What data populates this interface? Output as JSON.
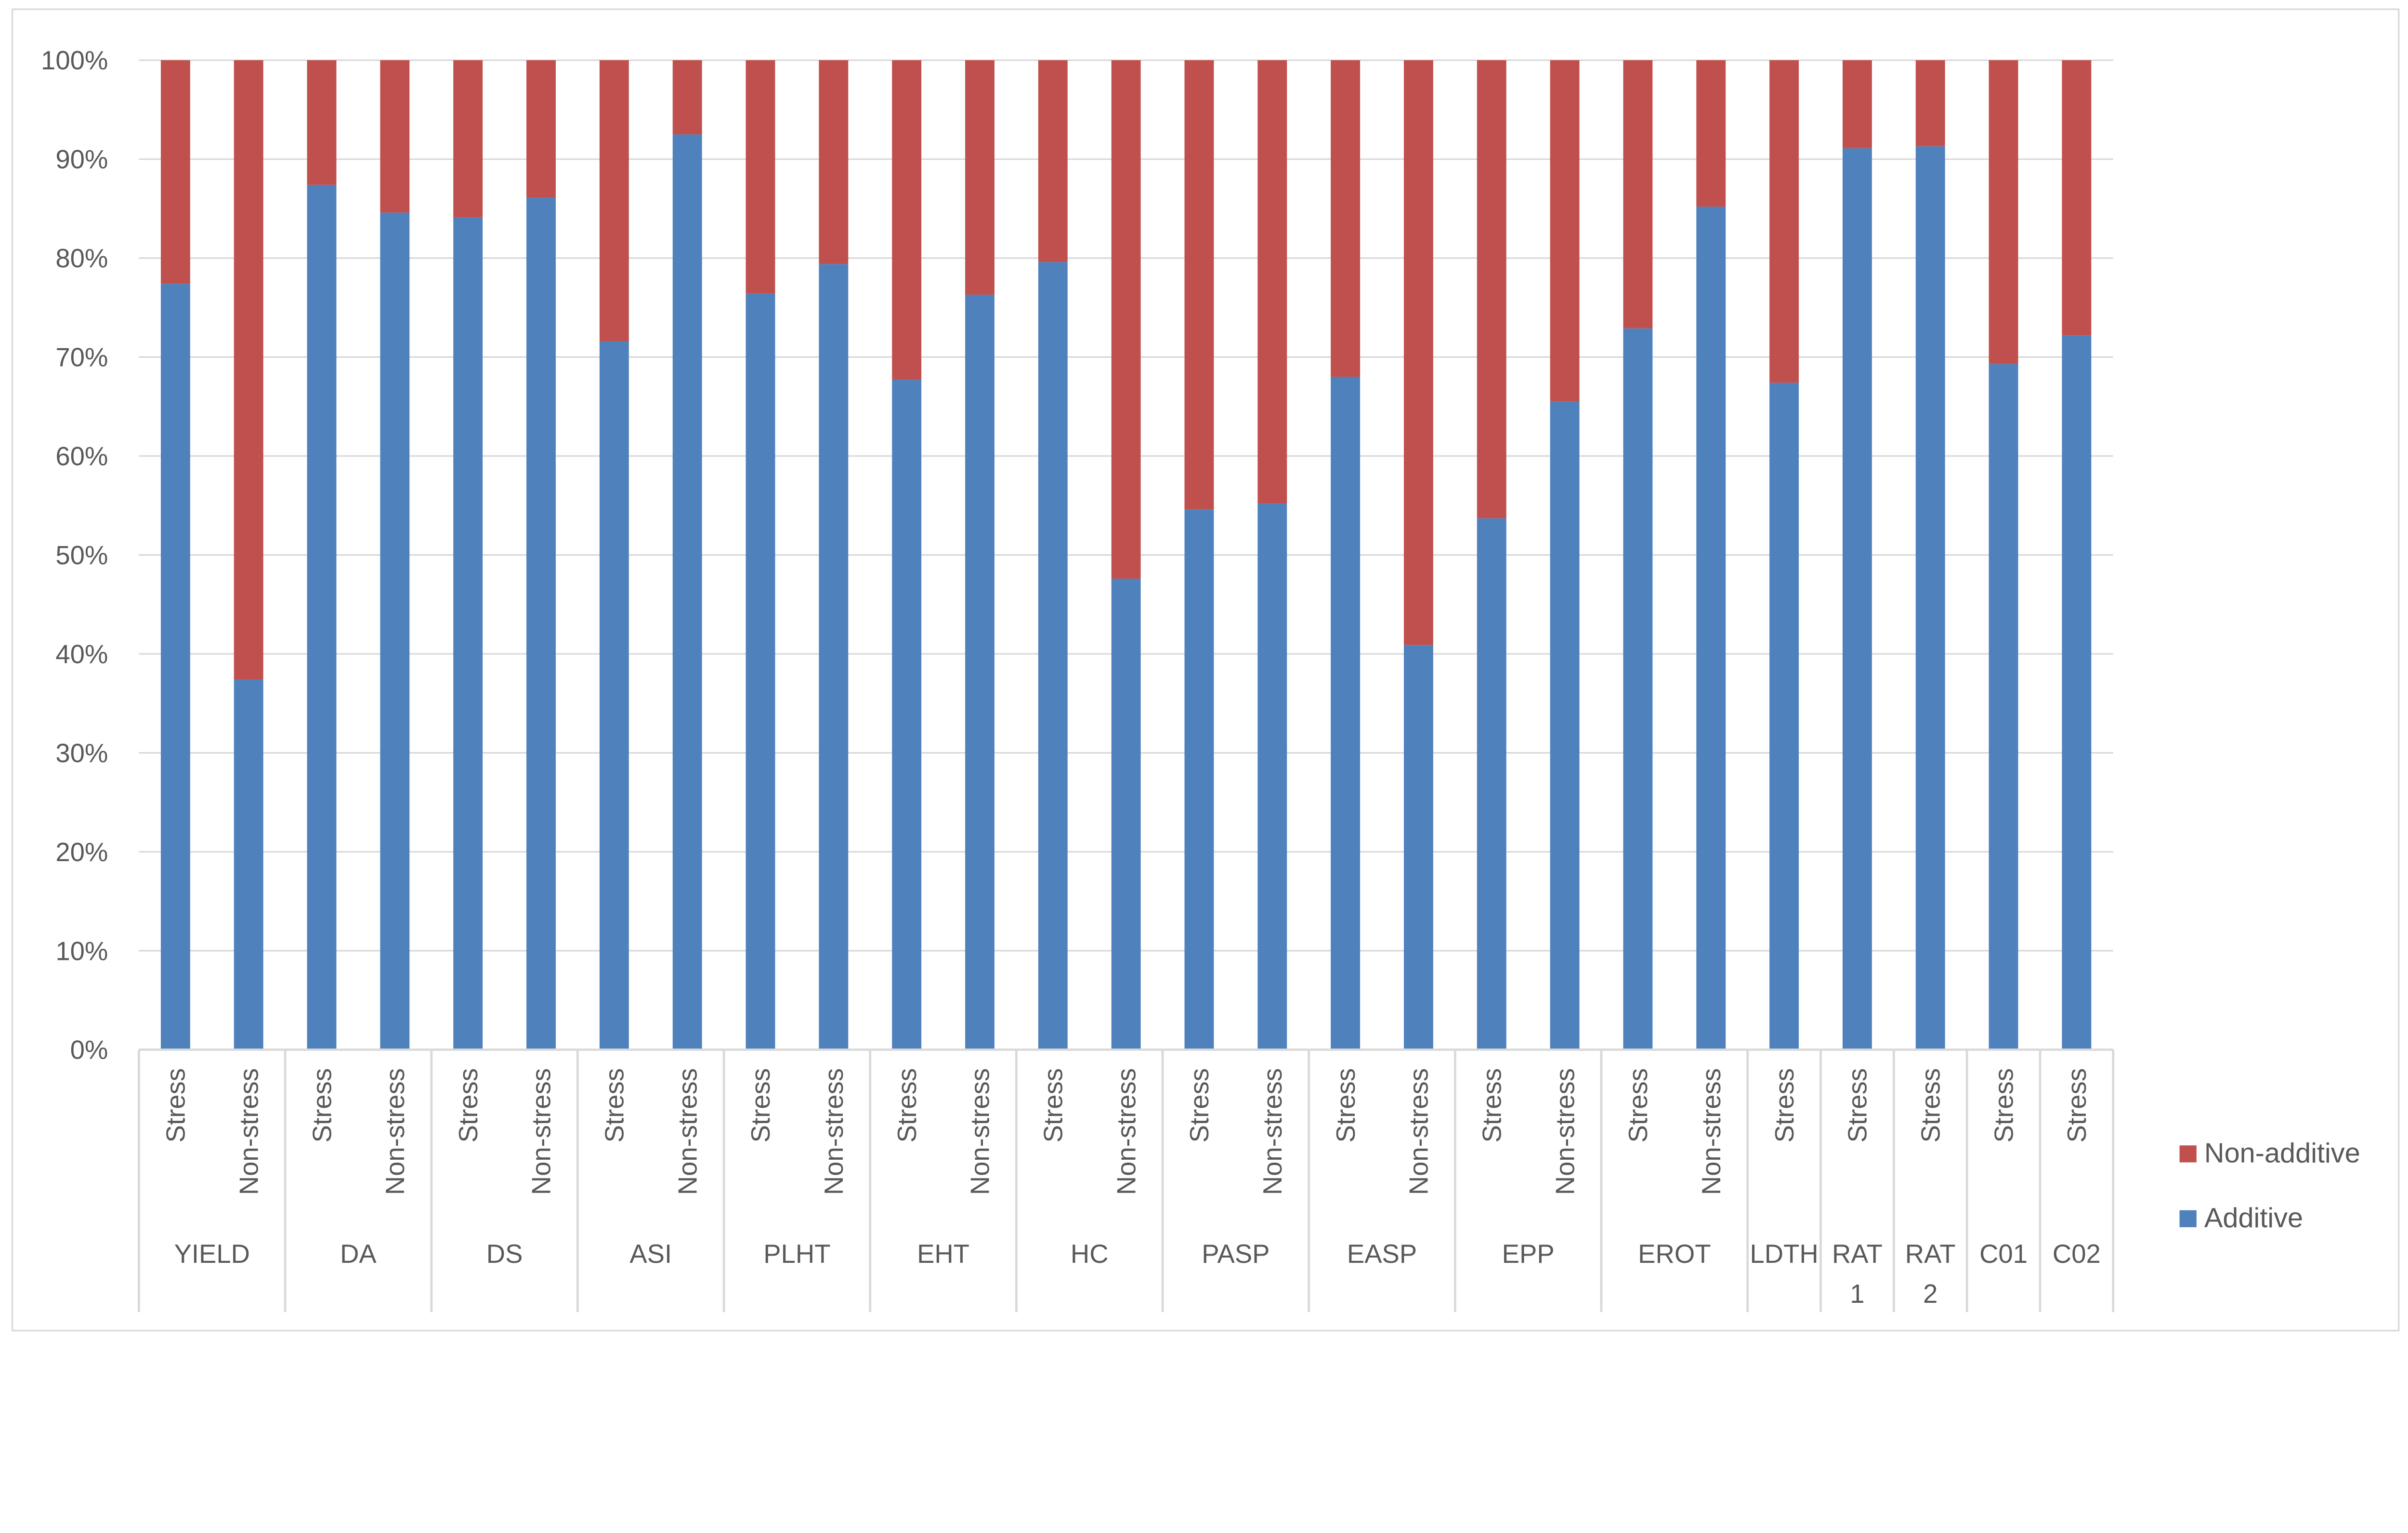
{
  "chart_data": {
    "type": "bar",
    "stacked": "percent",
    "title": "",
    "xlabel": "",
    "ylabel": "",
    "ylim": [
      0,
      100
    ],
    "yticks": [
      "0%",
      "10%",
      "20%",
      "30%",
      "40%",
      "50%",
      "60%",
      "70%",
      "80%",
      "90%",
      "100%"
    ],
    "grid": true,
    "legend_position": "right",
    "groups": [
      {
        "label": "YIELD",
        "conditions": [
          "Stress",
          "Non-stress"
        ]
      },
      {
        "label": "DA",
        "conditions": [
          "Stress",
          "Non-stress"
        ]
      },
      {
        "label": "DS",
        "conditions": [
          "Stress",
          "Non-stress"
        ]
      },
      {
        "label": "ASI",
        "conditions": [
          "Stress",
          "Non-stress"
        ]
      },
      {
        "label": "PLHT",
        "conditions": [
          "Stress",
          "Non-stress"
        ]
      },
      {
        "label": "EHT",
        "conditions": [
          "Stress",
          "Non-stress"
        ]
      },
      {
        "label": "HC",
        "conditions": [
          "Stress",
          "Non-stress"
        ]
      },
      {
        "label": "PASP",
        "conditions": [
          "Stress",
          "Non-stress"
        ]
      },
      {
        "label": "EASP",
        "conditions": [
          "Stress",
          "Non-stress"
        ]
      },
      {
        "label": "EPP",
        "conditions": [
          "Stress",
          "Non-stress"
        ]
      },
      {
        "label": "EROT",
        "conditions": [
          "Stress",
          "Non-stress"
        ]
      },
      {
        "label": "LDTH",
        "conditions": [
          "Stress"
        ]
      },
      {
        "label": "RAT 1",
        "conditions": [
          "Stress"
        ]
      },
      {
        "label": "RAT 2",
        "conditions": [
          "Stress"
        ]
      },
      {
        "label": "C01",
        "conditions": [
          "Stress"
        ]
      },
      {
        "label": "C02",
        "conditions": [
          "Stress"
        ]
      }
    ],
    "series": [
      {
        "name": "Additive",
        "color": "#4F81BD",
        "values": [
          77.4,
          37.4,
          87.4,
          84.6,
          84.1,
          86.1,
          71.6,
          92.5,
          76.4,
          79.4,
          67.7,
          76.3,
          79.6,
          47.6,
          54.6,
          55.2,
          68.0,
          40.9,
          53.7,
          65.5,
          72.9,
          85.2,
          67.4,
          91.1,
          91.3,
          69.3,
          72.2
        ]
      },
      {
        "name": "Non-additive",
        "color": "#C0504D",
        "values": [
          22.6,
          62.6,
          12.6,
          15.4,
          15.9,
          13.9,
          28.4,
          7.5,
          23.6,
          20.6,
          32.3,
          23.7,
          20.4,
          52.4,
          45.4,
          44.8,
          32.0,
          59.1,
          46.3,
          34.5,
          27.1,
          14.8,
          32.6,
          8.9,
          8.7,
          30.7,
          27.8
        ]
      }
    ],
    "legend": [
      "Non-additive",
      "Additive"
    ]
  }
}
